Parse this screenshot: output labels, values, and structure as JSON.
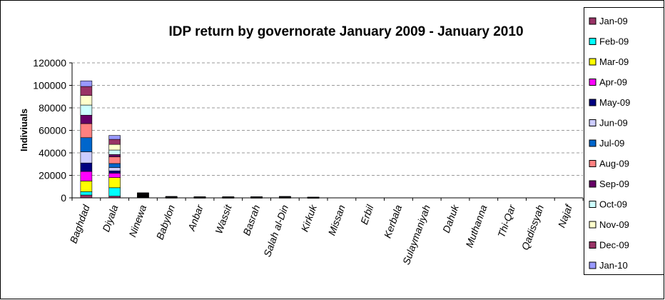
{
  "chart_data": {
    "type": "bar",
    "stacked": true,
    "title": "IDP return by governorate January 2009 - January 2010",
    "xlabel": "",
    "ylabel": "Indiviuals",
    "ylim": [
      0,
      120000
    ],
    "yticks": [
      0,
      20000,
      40000,
      60000,
      80000,
      100000,
      120000
    ],
    "grid": true,
    "legend_position": "right",
    "categories": [
      "Baghdad",
      "Diyala",
      "Ninewa",
      "Babylon",
      "Anbar",
      "Wassit",
      "Basrah",
      "Salah al-Din",
      "Kirkuk",
      "Missan",
      "Erbil",
      "Kerbala",
      "Sulaymaniyah",
      "Dahuk",
      "Muthanna",
      "Thi-Qar",
      "Qadissyah",
      "Najaf"
    ],
    "series": [
      {
        "name": "Jan-09",
        "color": "#993366",
        "values": [
          2500,
          1500,
          350,
          100,
          80,
          80,
          80,
          100,
          50,
          0,
          0,
          0,
          0,
          0,
          0,
          0,
          0,
          0
        ]
      },
      {
        "name": "Feb-09",
        "color": "#00FFFF",
        "values": [
          3000,
          7500,
          350,
          100,
          80,
          80,
          80,
          100,
          50,
          0,
          0,
          0,
          0,
          0,
          0,
          0,
          0,
          0
        ]
      },
      {
        "name": "Mar-09",
        "color": "#FFFF00",
        "values": [
          9500,
          9000,
          350,
          100,
          80,
          80,
          80,
          100,
          50,
          0,
          0,
          0,
          0,
          0,
          0,
          0,
          0,
          0
        ]
      },
      {
        "name": "Apr-09",
        "color": "#FF00FF",
        "values": [
          8500,
          4000,
          350,
          100,
          80,
          80,
          80,
          100,
          50,
          0,
          0,
          0,
          0,
          0,
          0,
          0,
          0,
          0
        ]
      },
      {
        "name": "May-09",
        "color": "#000080",
        "values": [
          7500,
          2000,
          350,
          100,
          80,
          80,
          80,
          100,
          50,
          0,
          0,
          0,
          0,
          0,
          0,
          0,
          0,
          0
        ]
      },
      {
        "name": "Jun-09",
        "color": "#CCCCFF",
        "values": [
          10000,
          3000,
          350,
          100,
          80,
          80,
          80,
          100,
          50,
          0,
          0,
          0,
          0,
          0,
          0,
          0,
          0,
          0
        ]
      },
      {
        "name": "Jul-09",
        "color": "#0066CC",
        "values": [
          12500,
          3500,
          350,
          100,
          80,
          80,
          80,
          100,
          50,
          0,
          0,
          0,
          0,
          0,
          0,
          0,
          0,
          0
        ]
      },
      {
        "name": "Aug-09",
        "color": "#FF8080",
        "values": [
          12500,
          6000,
          350,
          100,
          80,
          80,
          80,
          100,
          50,
          0,
          0,
          0,
          0,
          0,
          0,
          0,
          0,
          0
        ]
      },
      {
        "name": "Sep-09",
        "color": "#660066",
        "values": [
          7500,
          2000,
          350,
          100,
          80,
          80,
          80,
          100,
          50,
          0,
          0,
          0,
          0,
          0,
          0,
          0,
          0,
          0
        ]
      },
      {
        "name": "Oct-09",
        "color": "#CCFFFF",
        "values": [
          9000,
          4000,
          350,
          100,
          80,
          80,
          80,
          100,
          50,
          0,
          0,
          0,
          0,
          0,
          0,
          0,
          0,
          0
        ]
      },
      {
        "name": "Nov-09",
        "color": "#FFFFCC",
        "values": [
          8500,
          5000,
          350,
          100,
          80,
          80,
          80,
          100,
          50,
          0,
          0,
          0,
          0,
          0,
          0,
          0,
          0,
          0
        ]
      },
      {
        "name": "Dec-09",
        "color": "#993366",
        "values": [
          8000,
          4500,
          350,
          100,
          80,
          80,
          80,
          100,
          50,
          0,
          0,
          0,
          0,
          0,
          0,
          0,
          0,
          0
        ]
      },
      {
        "name": "Jan-10",
        "color": "#9999FF",
        "values": [
          5000,
          3500,
          350,
          100,
          80,
          80,
          80,
          100,
          50,
          0,
          0,
          0,
          0,
          0,
          0,
          0,
          0,
          0
        ]
      }
    ]
  }
}
